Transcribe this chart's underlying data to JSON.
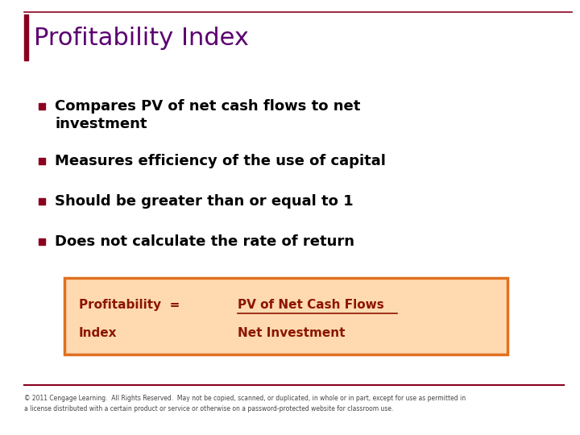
{
  "title": "Profitability Index",
  "title_color": "#5B0070",
  "title_fontsize": 22,
  "background_color": "#FFFFFF",
  "top_line_color": "#8B0020",
  "bottom_line_color": "#8B0020",
  "left_bar_color": "#8B0020",
  "bullet_color": "#8B0020",
  "bullet_points_line1": [
    "Compares PV of net cash flows to net",
    "Measures efficiency of the use of capital",
    "Should be greater than or equal to 1",
    "Does not calculate the rate of return"
  ],
  "bullet_points_line2": [
    "investment",
    "",
    "",
    ""
  ],
  "bullet_fontsize": 13,
  "bullet_text_color": "#000000",
  "formula_box_bg": "#FFDAB0",
  "formula_box_border": "#E07020",
  "formula_left_text_line1": "Profitability  =",
  "formula_left_text_line2": "Index",
  "formula_right_top": "PV of Net Cash Flows",
  "formula_right_bottom": "Net Investment",
  "formula_text_color": "#8B1500",
  "formula_fontsize": 11,
  "copyright_text": "© 2011 Cengage Learning.  All Rights Reserved.  May not be copied, scanned, or duplicated, in whole or in part, except for use as permitted in\na license distributed with a certain product or service or otherwise on a password-protected website for classroom use.",
  "copyright_fontsize": 5.5,
  "copyright_color": "#444444"
}
